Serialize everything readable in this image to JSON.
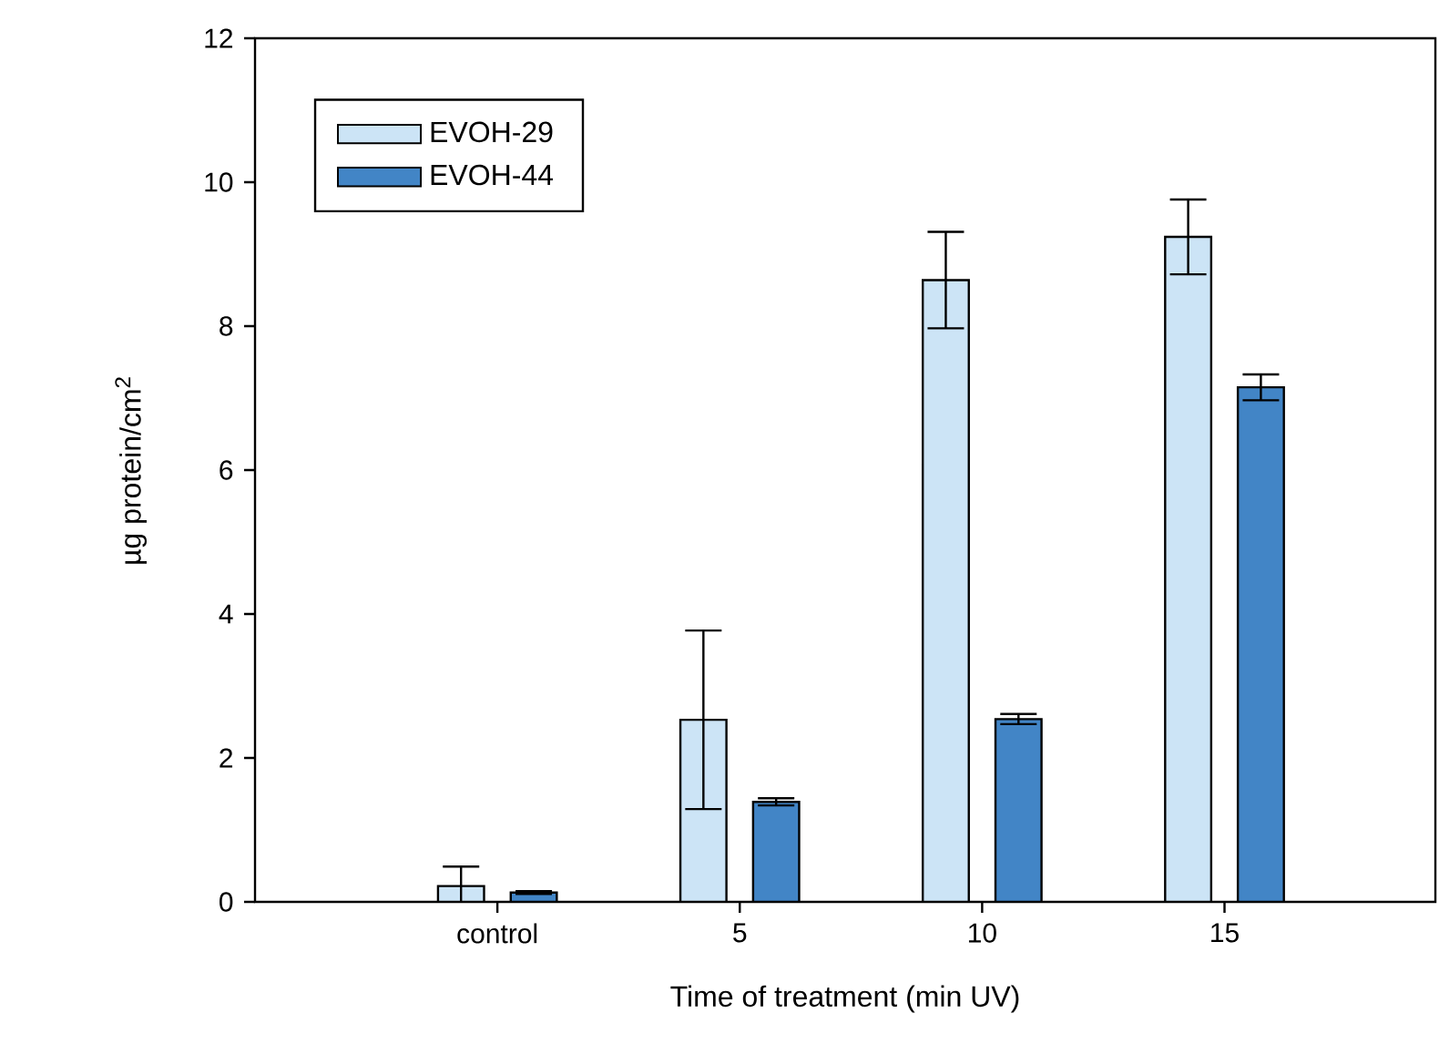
{
  "chart_data": {
    "type": "bar",
    "xlabel": "Time of treatment (min UV)",
    "ylabel": "µg protein/cm$^{2}$",
    "categories": [
      "control",
      "5",
      "10",
      "15"
    ],
    "series": [
      {
        "name": "EVOH-29",
        "color": "#cce4f6",
        "values": [
          0.22,
          2.53,
          8.64,
          9.24
        ],
        "errors": [
          0.27,
          1.24,
          0.67,
          0.52
        ]
      },
      {
        "name": "EVOH-44",
        "color": "#4285c6",
        "values": [
          0.13,
          1.39,
          2.54,
          7.15
        ],
        "errors": [
          0.02,
          0.05,
          0.07,
          0.18
        ]
      }
    ],
    "ylim": [
      0,
      12
    ],
    "yticks": [
      0,
      2,
      4,
      6,
      8,
      10,
      12
    ],
    "legend": "top left",
    "grid": false
  }
}
